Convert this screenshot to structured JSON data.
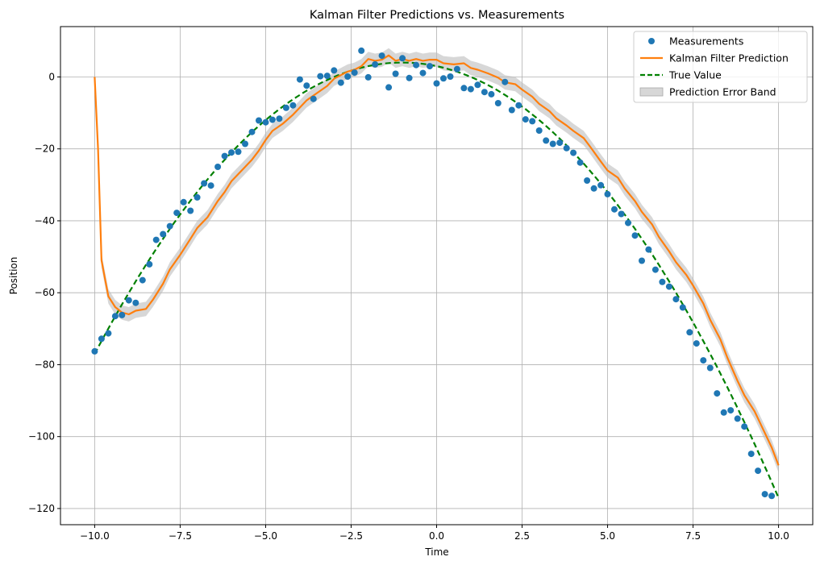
{
  "chart_data": {
    "type": "line",
    "title": "Kalman Filter Predictions vs. Measurements",
    "xlabel": "Time",
    "ylabel": "Position",
    "xlim": [
      -11.0,
      11.0
    ],
    "ylim": [
      -124.5,
      14.0
    ],
    "xticks": [
      -10.0,
      -7.5,
      -5.0,
      -2.5,
      0.0,
      2.5,
      5.0,
      7.5,
      10.0
    ],
    "xtick_labels": [
      "−10.0",
      "−7.5",
      "−5.0",
      "−2.5",
      "0.0",
      "2.5",
      "5.0",
      "7.5",
      "10.0"
    ],
    "yticks": [
      0,
      -20,
      -40,
      -60,
      -80,
      -100,
      -120
    ],
    "ytick_labels": [
      "0",
      "−20",
      "−40",
      "−60",
      "−80",
      "−100",
      "−120"
    ],
    "grid": true,
    "legend_position": "top-right",
    "colors": {
      "measurements": "#1f77b4",
      "prediction": "#ff7f0e",
      "true_value": "#008000",
      "error_band": "#bdbdbd",
      "grid": "#b0b0b0"
    },
    "series": [
      {
        "name": "Measurements",
        "type": "scatter",
        "points": [
          [
            -10.0,
            -76.3
          ],
          [
            -9.8,
            -72.8
          ],
          [
            -9.6,
            -71.3
          ],
          [
            -9.4,
            -66.5
          ],
          [
            -9.2,
            -66.2
          ],
          [
            -9.0,
            -62.1
          ],
          [
            -8.8,
            -62.8
          ],
          [
            -8.6,
            -56.5
          ],
          [
            -8.4,
            -52.1
          ],
          [
            -8.2,
            -45.3
          ],
          [
            -8.0,
            -43.7
          ],
          [
            -7.8,
            -41.5
          ],
          [
            -7.6,
            -37.8
          ],
          [
            -7.4,
            -34.8
          ],
          [
            -7.2,
            -37.2
          ],
          [
            -7.0,
            -33.5
          ],
          [
            -6.8,
            -29.6
          ],
          [
            -6.6,
            -30.2
          ],
          [
            -6.4,
            -25.0
          ],
          [
            -6.2,
            -22.0
          ],
          [
            -6.0,
            -21.0
          ],
          [
            -5.8,
            -20.8
          ],
          [
            -5.6,
            -18.6
          ],
          [
            -5.4,
            -15.3
          ],
          [
            -5.2,
            -12.1
          ],
          [
            -5.0,
            -12.6
          ],
          [
            -4.8,
            -11.9
          ],
          [
            -4.6,
            -11.6
          ],
          [
            -4.4,
            -8.6
          ],
          [
            -4.2,
            -7.9
          ],
          [
            -4.0,
            -0.7
          ],
          [
            -3.8,
            -2.4
          ],
          [
            -3.6,
            -6.1
          ],
          [
            -3.4,
            0.2
          ],
          [
            -3.2,
            0.3
          ],
          [
            -3.0,
            1.8
          ],
          [
            -2.8,
            -1.6
          ],
          [
            -2.6,
            0.1
          ],
          [
            -2.4,
            1.2
          ],
          [
            -2.2,
            7.3
          ],
          [
            -2.0,
            -0.1
          ],
          [
            -1.8,
            3.5
          ],
          [
            -1.6,
            5.9
          ],
          [
            -1.4,
            -2.9
          ],
          [
            -1.2,
            0.9
          ],
          [
            -1.0,
            5.2
          ],
          [
            -0.8,
            -0.3
          ],
          [
            -0.6,
            3.3
          ],
          [
            -0.4,
            1.1
          ],
          [
            -0.2,
            3.0
          ],
          [
            0.0,
            -1.8
          ],
          [
            0.2,
            -0.4
          ],
          [
            0.4,
            0.1
          ],
          [
            0.6,
            2.2
          ],
          [
            0.8,
            -3.1
          ],
          [
            1.0,
            -3.4
          ],
          [
            1.2,
            -2.2
          ],
          [
            1.4,
            -4.2
          ],
          [
            1.6,
            -4.8
          ],
          [
            1.8,
            -7.3
          ],
          [
            2.0,
            -1.4
          ],
          [
            2.2,
            -9.2
          ],
          [
            2.4,
            -7.9
          ],
          [
            2.6,
            -11.8
          ],
          [
            2.8,
            -12.3
          ],
          [
            3.0,
            -14.9
          ],
          [
            3.2,
            -17.7
          ],
          [
            3.4,
            -18.6
          ],
          [
            3.6,
            -18.3
          ],
          [
            3.8,
            -19.8
          ],
          [
            4.0,
            -21.1
          ],
          [
            4.2,
            -23.8
          ],
          [
            4.4,
            -28.8
          ],
          [
            4.6,
            -31.0
          ],
          [
            4.8,
            -30.1
          ],
          [
            5.0,
            -32.6
          ],
          [
            5.2,
            -36.8
          ],
          [
            5.4,
            -38.1
          ],
          [
            5.6,
            -40.6
          ],
          [
            5.8,
            -44.1
          ],
          [
            6.0,
            -51.1
          ],
          [
            6.2,
            -48.0
          ],
          [
            6.4,
            -53.6
          ],
          [
            6.6,
            -57.0
          ],
          [
            6.8,
            -58.3
          ],
          [
            7.0,
            -61.8
          ],
          [
            7.2,
            -64.1
          ],
          [
            7.4,
            -71.0
          ],
          [
            7.6,
            -74.1
          ],
          [
            7.8,
            -78.8
          ],
          [
            8.0,
            -80.9
          ],
          [
            8.2,
            -88.0
          ],
          [
            8.4,
            -93.3
          ],
          [
            8.6,
            -92.7
          ],
          [
            8.8,
            -95.0
          ],
          [
            9.0,
            -97.2
          ],
          [
            9.2,
            -104.8
          ],
          [
            9.4,
            -109.5
          ],
          [
            9.6,
            -116.0
          ],
          [
            9.8,
            -116.5
          ]
        ]
      },
      {
        "name": "Kalman Filter Prediction",
        "type": "line",
        "points": [
          [
            -10.0,
            0.0
          ],
          [
            -9.9,
            -20.0
          ],
          [
            -9.8,
            -51.0
          ],
          [
            -9.7,
            -56.0
          ],
          [
            -9.6,
            -61.0
          ],
          [
            -9.4,
            -64.0
          ],
          [
            -9.2,
            -65.5
          ],
          [
            -9.0,
            -66.0
          ],
          [
            -8.8,
            -65.0
          ],
          [
            -8.5,
            -64.5
          ],
          [
            -8.3,
            -62.0
          ],
          [
            -8.0,
            -57.5
          ],
          [
            -7.8,
            -53.5
          ],
          [
            -7.5,
            -49.5
          ],
          [
            -7.2,
            -45.0
          ],
          [
            -7.0,
            -42.0
          ],
          [
            -6.7,
            -39.0
          ],
          [
            -6.4,
            -34.5
          ],
          [
            -6.2,
            -32.0
          ],
          [
            -6.0,
            -29.0
          ],
          [
            -5.7,
            -26.0
          ],
          [
            -5.4,
            -23.0
          ],
          [
            -5.2,
            -20.5
          ],
          [
            -5.0,
            -17.5
          ],
          [
            -4.8,
            -15.0
          ],
          [
            -4.5,
            -13.0
          ],
          [
            -4.2,
            -10.5
          ],
          [
            -4.0,
            -8.5
          ],
          [
            -3.8,
            -6.5
          ],
          [
            -3.5,
            -4.5
          ],
          [
            -3.2,
            -2.5
          ],
          [
            -3.0,
            -0.5
          ],
          [
            -2.8,
            0.5
          ],
          [
            -2.6,
            1.5
          ],
          [
            -2.4,
            2.0
          ],
          [
            -2.2,
            3.0
          ],
          [
            -2.0,
            5.0
          ],
          [
            -1.8,
            4.5
          ],
          [
            -1.6,
            4.8
          ],
          [
            -1.4,
            6.0
          ],
          [
            -1.2,
            4.5
          ],
          [
            -1.0,
            5.0
          ],
          [
            -0.8,
            4.5
          ],
          [
            -0.6,
            5.0
          ],
          [
            -0.4,
            4.5
          ],
          [
            -0.2,
            4.8
          ],
          [
            0.0,
            4.8
          ],
          [
            0.2,
            3.8
          ],
          [
            0.5,
            3.5
          ],
          [
            0.8,
            3.8
          ],
          [
            1.0,
            2.5
          ],
          [
            1.2,
            2.0
          ],
          [
            1.5,
            1.0
          ],
          [
            1.8,
            -0.2
          ],
          [
            2.0,
            -1.5
          ],
          [
            2.3,
            -2.0
          ],
          [
            2.5,
            -3.5
          ],
          [
            2.8,
            -5.5
          ],
          [
            3.0,
            -7.5
          ],
          [
            3.3,
            -9.5
          ],
          [
            3.5,
            -11.5
          ],
          [
            3.8,
            -13.5
          ],
          [
            4.0,
            -15.0
          ],
          [
            4.3,
            -17.0
          ],
          [
            4.5,
            -19.5
          ],
          [
            4.8,
            -23.5
          ],
          [
            5.0,
            -26.0
          ],
          [
            5.3,
            -28.0
          ],
          [
            5.5,
            -31.0
          ],
          [
            5.8,
            -34.5
          ],
          [
            6.0,
            -37.5
          ],
          [
            6.3,
            -41.0
          ],
          [
            6.5,
            -44.5
          ],
          [
            6.8,
            -48.5
          ],
          [
            7.0,
            -51.5
          ],
          [
            7.3,
            -55.0
          ],
          [
            7.5,
            -58.0
          ],
          [
            7.8,
            -63.0
          ],
          [
            8.0,
            -67.5
          ],
          [
            8.3,
            -73.0
          ],
          [
            8.5,
            -78.0
          ],
          [
            8.8,
            -84.5
          ],
          [
            9.0,
            -88.5
          ],
          [
            9.3,
            -93.0
          ],
          [
            9.5,
            -97.0
          ],
          [
            9.8,
            -103.0
          ],
          [
            10.0,
            -108.0
          ]
        ]
      },
      {
        "name": "True Value",
        "type": "line",
        "dashed": true,
        "function": "-(x+1)^2 + 4"
      },
      {
        "name": "Prediction Error Band",
        "type": "area",
        "band_halfwidth": 2.0
      }
    ]
  }
}
